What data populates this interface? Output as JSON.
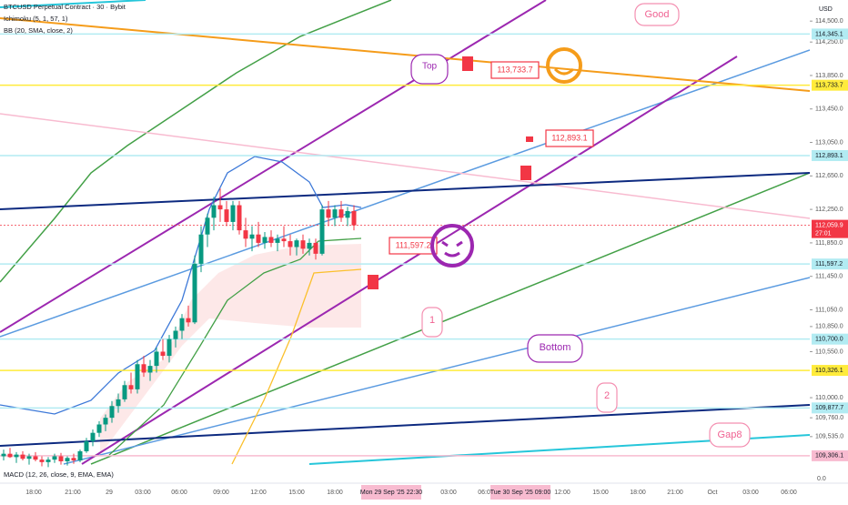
{
  "header": {
    "title": "BTCUSD Perpetual Contract · 30 · Bybit",
    "indicators": [
      "Ichimoku (5, 1, 57, 1)",
      "BB (20, SMA, close, 2)"
    ],
    "macd": "MACD (12, 26, close, 9, EMA, EMA)"
  },
  "chart_data": {
    "type": "candlestick",
    "up_color": "#089981",
    "down_color": "#f23645",
    "ohlc": [
      [
        109300,
        109380,
        109250,
        109330
      ],
      [
        109330,
        109400,
        109280,
        109290
      ],
      [
        109290,
        109350,
        109220,
        109320
      ],
      [
        109320,
        109360,
        109250,
        109270
      ],
      [
        109270,
        109330,
        109200,
        109300
      ],
      [
        109300,
        109350,
        109240,
        109260
      ],
      [
        109260,
        109300,
        109180,
        109230
      ],
      [
        109230,
        109290,
        109170,
        109260
      ],
      [
        109260,
        109330,
        109220,
        109300
      ],
      [
        109300,
        109340,
        109200,
        109240
      ],
      [
        109240,
        109300,
        109190,
        109280
      ],
      [
        109280,
        109330,
        109210,
        109250
      ],
      [
        109250,
        109380,
        109230,
        109360
      ],
      [
        109360,
        109520,
        109340,
        109480
      ],
      [
        109480,
        109620,
        109420,
        109580
      ],
      [
        109580,
        109720,
        109530,
        109680
      ],
      [
        109680,
        109800,
        109600,
        109760
      ],
      [
        109760,
        109960,
        109700,
        109900
      ],
      [
        109900,
        110050,
        109820,
        109980
      ],
      [
        109980,
        110200,
        109950,
        110150
      ],
      [
        110150,
        110300,
        110050,
        110100
      ],
      [
        110100,
        110450,
        110050,
        110400
      ],
      [
        110400,
        110500,
        110250,
        110300
      ],
      [
        110300,
        110450,
        110200,
        110380
      ],
      [
        110380,
        110600,
        110300,
        110550
      ],
      [
        110550,
        110700,
        110450,
        110500
      ],
      [
        110500,
        110750,
        110420,
        110700
      ],
      [
        110700,
        110850,
        110600,
        110800
      ],
      [
        110800,
        111000,
        110700,
        110950
      ],
      [
        110950,
        111100,
        110850,
        110900
      ],
      [
        110900,
        111700,
        110880,
        111600
      ],
      [
        111600,
        112050,
        111500,
        111950
      ],
      [
        111950,
        112200,
        111800,
        112150
      ],
      [
        112150,
        112400,
        112000,
        112300
      ],
      [
        112300,
        112500,
        112100,
        112250
      ],
      [
        112250,
        112350,
        112050,
        112100
      ],
      [
        112100,
        112350,
        112000,
        112300
      ],
      [
        112300,
        112350,
        111950,
        112000
      ],
      [
        112000,
        112150,
        111800,
        111900
      ],
      [
        111900,
        112050,
        111750,
        111950
      ],
      [
        111950,
        112100,
        111800,
        111850
      ],
      [
        111850,
        111980,
        111780,
        111920
      ],
      [
        111920,
        112000,
        111800,
        111850
      ],
      [
        111850,
        111950,
        111750,
        111900
      ],
      [
        111900,
        112050,
        111800,
        111870
      ],
      [
        111870,
        111950,
        111700,
        111800
      ],
      [
        111800,
        111900,
        111700,
        111880
      ],
      [
        111880,
        111950,
        111720,
        111780
      ],
      [
        111780,
        111900,
        111700,
        111850
      ],
      [
        111850,
        111900,
        111650,
        111720
      ],
      [
        111720,
        112300,
        111700,
        112250
      ],
      [
        112250,
        112350,
        112050,
        112150
      ],
      [
        112150,
        112300,
        112050,
        112250
      ],
      [
        112250,
        112350,
        112100,
        112150
      ],
      [
        112150,
        112280,
        112050,
        112230
      ],
      [
        112230,
        112300,
        112000,
        112059.9
      ]
    ],
    "y_unit": "USD",
    "ylim": [
      109207,
      114752
    ],
    "yticks": [
      {
        "value": 114500,
        "label": "114,500.0"
      },
      {
        "value": 114250,
        "label": "114,250.0"
      },
      {
        "value": 113850,
        "label": "113,850.0"
      },
      {
        "value": 113450,
        "label": "113,450.0"
      },
      {
        "value": 113050,
        "label": "113,050.0"
      },
      {
        "value": 112650,
        "label": "112,650.0"
      },
      {
        "value": 112250,
        "label": "112,250.0"
      },
      {
        "value": 111850,
        "label": "111,850.0"
      },
      {
        "value": 111450,
        "label": "111,450.0"
      },
      {
        "value": 111050,
        "label": "111,050.0"
      },
      {
        "value": 110850,
        "label": "110,850.0"
      },
      {
        "value": 110550,
        "label": "110,550.0"
      },
      {
        "value": 110000,
        "label": "110,000.0"
      },
      {
        "value": 109760,
        "label": "109,760.0"
      },
      {
        "value": 109535,
        "label": "109,535.0"
      }
    ],
    "price_labels": [
      {
        "value": 114345.1,
        "label": "114,345.1",
        "color": "#b2ebf2"
      },
      {
        "value": 113733.7,
        "label": "113,733.7",
        "color": "#ffeb3b"
      },
      {
        "value": 112893.1,
        "label": "112,893.1",
        "color": "#b2ebf2"
      },
      {
        "value": 112059.9,
        "label": "112,059.9",
        "color": "#f23645"
      },
      {
        "value": 111597.2,
        "label": "111,597.2",
        "color": "#b2ebf2"
      },
      {
        "value": 110700,
        "label": "110,700.0",
        "color": "#b2ebf2"
      },
      {
        "value": 110326.1,
        "label": "110,326.1",
        "color": "#ffeb3b"
      },
      {
        "value": 109877.7,
        "label": "109,877.7",
        "color": "#b2ebf2"
      },
      {
        "value": 109306.1,
        "label": "109,306.1",
        "color": "#f8bbd0"
      }
    ],
    "countdown": "27:01",
    "macd_zero": "0.0",
    "time_labels": [
      "18:00",
      "21:00",
      "29",
      "03:00",
      "06:00",
      "09:00",
      "12:00",
      "15:00",
      "18:00",
      "03:00",
      "06:00",
      "12:00",
      "15:00",
      "18:00",
      "21:00",
      "Oct",
      "03:00",
      "06:00"
    ],
    "time_highlights": [
      "Mon 29 Sep '25  22:30",
      "Tue 30 Sep '25  09:00"
    ]
  },
  "annotations": {
    "callouts": [
      "113,733.7",
      "112,893.1",
      "111,597.2"
    ],
    "notes": [
      "Good",
      "Top",
      "Bottom",
      "Gap8",
      "1",
      "2"
    ]
  }
}
